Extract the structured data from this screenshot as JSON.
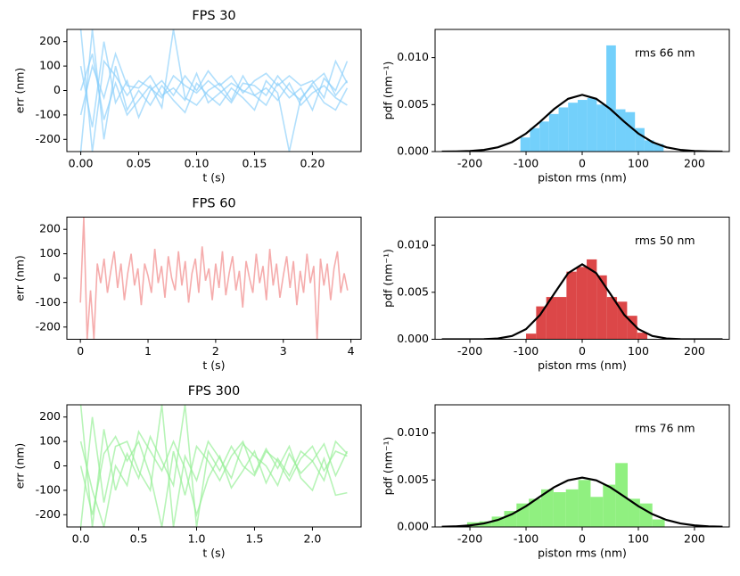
{
  "chart_data": [
    {
      "type": "line",
      "title": "FPS 30",
      "xlabel": "t (s)",
      "ylabel": "err (nm)",
      "xlim": [
        -0.012,
        0.242
      ],
      "xticks": [
        {
          "value": 0,
          "label": "0.00"
        },
        0.05,
        {
          "value": 0.1,
          "label": "0.10"
        },
        0.15,
        {
          "value": 0.2,
          "label": "0.20"
        }
      ],
      "ylim": [
        -250,
        250
      ],
      "yticks": [
        -200,
        -100,
        0,
        100,
        200
      ],
      "x": [
        0,
        0.01,
        0.02,
        0.03,
        0.04,
        0.05,
        0.06,
        0.07,
        0.08,
        0.09,
        0.1,
        0.11,
        0.12,
        0.13,
        0.14,
        0.15,
        0.16,
        0.17,
        0.18,
        0.19,
        0.2,
        0.21,
        0.22,
        0.23
      ],
      "series": [
        {
          "color": "#87cefa",
          "values": [
            250,
            -250,
            120,
            60,
            -20,
            40,
            10,
            -30,
            60,
            20,
            -10,
            40,
            0,
            -50,
            30,
            20,
            -20,
            60,
            0,
            -40,
            30,
            70,
            -20,
            40
          ]
        },
        {
          "color": "#87cefa",
          "values": [
            -250,
            250,
            -200,
            100,
            -80,
            0,
            -60,
            20,
            -40,
            -90,
            30,
            -20,
            -60,
            10,
            -30,
            -80,
            40,
            -10,
            -250,
            -30,
            20,
            -50,
            -80,
            10
          ]
        },
        {
          "color": "#87cefa",
          "values": [
            0,
            150,
            -120,
            30,
            -100,
            -40,
            20,
            -70,
            250,
            -30,
            -60,
            0,
            30,
            -40,
            60,
            -20,
            10,
            -40,
            30,
            -60,
            -10,
            20,
            -30,
            -60
          ]
        },
        {
          "color": "#87cefa",
          "values": [
            100,
            -150,
            200,
            -50,
            40,
            -110,
            0,
            40,
            -20,
            60,
            0,
            80,
            20,
            60,
            -10,
            40,
            70,
            20,
            60,
            20,
            40,
            -30,
            120,
            30
          ]
        },
        {
          "color": "#87cefa",
          "values": [
            -100,
            100,
            -30,
            150,
            20,
            10,
            60,
            -20,
            10,
            -40,
            70,
            -50,
            -10,
            30,
            0,
            -20,
            -60,
            30,
            -30,
            10,
            -80,
            50,
            0,
            120
          ]
        }
      ]
    },
    {
      "type": "histogram",
      "xlabel": "piston rms (nm)",
      "ylabel": "pdf (nm⁻¹)",
      "annotation": "rms 66 nm",
      "xlim": [
        -262,
        262
      ],
      "xticks": [
        -200,
        -100,
        0,
        100,
        200
      ],
      "ylim": [
        0,
        0.013
      ],
      "yticks": [
        {
          "value": 0,
          "label": "0.000"
        },
        0.005,
        {
          "value": 0.01,
          "label": "0.010"
        }
      ],
      "color": "#5ac8fa",
      "bins": [
        -110,
        -93,
        -76,
        -59,
        -42,
        -25,
        -8,
        9,
        26,
        43,
        60,
        77,
        94,
        111,
        128,
        145
      ],
      "values": [
        0.0015,
        0.0025,
        0.0032,
        0.004,
        0.0047,
        0.0052,
        0.0055,
        0.0057,
        0.005,
        0.0113,
        0.0045,
        0.0042,
        0.0025,
        0.0012,
        0.0008
      ],
      "fit": {
        "color": "#000000",
        "x": [
          -250,
          -225,
          -200,
          -175,
          -150,
          -125,
          -100,
          -75,
          -50,
          -25,
          0,
          25,
          50,
          75,
          100,
          125,
          150,
          175,
          200,
          225,
          250
        ],
        "values": [
          4.6e-06,
          1.81e-05,
          6.12e-05,
          0.00018,
          0.000457,
          0.00101,
          0.00192,
          0.00317,
          0.00453,
          0.00562,
          0.00604,
          0.00562,
          0.00453,
          0.00317,
          0.00192,
          0.00101,
          0.000457,
          0.00018,
          6.12e-05,
          1.81e-05,
          4.6e-06
        ]
      }
    },
    {
      "type": "line",
      "title": "FPS 60",
      "xlabel": "t (s)",
      "ylabel": "err (nm)",
      "xlim": [
        -0.2,
        4.15
      ],
      "xticks": [
        0,
        1,
        2,
        3,
        4
      ],
      "ylim": [
        -250,
        250
      ],
      "yticks": [
        -200,
        -100,
        0,
        100,
        200
      ],
      "x": [
        0,
        0.05,
        0.1,
        0.15,
        0.2,
        0.25,
        0.3,
        0.35,
        0.4,
        0.45,
        0.5,
        0.55,
        0.6,
        0.65,
        0.7,
        0.75,
        0.8,
        0.85,
        0.9,
        0.95,
        1,
        1.05,
        1.1,
        1.15,
        1.2,
        1.25,
        1.3,
        1.35,
        1.4,
        1.45,
        1.5,
        1.55,
        1.6,
        1.65,
        1.7,
        1.75,
        1.8,
        1.85,
        1.9,
        1.95,
        2,
        2.05,
        2.1,
        2.15,
        2.2,
        2.25,
        2.3,
        2.35,
        2.4,
        2.45,
        2.5,
        2.55,
        2.6,
        2.65,
        2.7,
        2.75,
        2.8,
        2.85,
        2.9,
        2.95,
        3,
        3.05,
        3.1,
        3.15,
        3.2,
        3.25,
        3.3,
        3.35,
        3.4,
        3.45,
        3.5,
        3.55,
        3.6,
        3.65,
        3.7,
        3.75,
        3.8,
        3.85,
        3.9,
        3.95
      ],
      "series": [
        {
          "color": "#f08080",
          "values": [
            -100,
            250,
            -250,
            -50,
            -250,
            60,
            -20,
            80,
            -60,
            30,
            110,
            -40,
            60,
            -90,
            20,
            100,
            -30,
            40,
            -110,
            60,
            10,
            -60,
            120,
            -20,
            50,
            -80,
            90,
            0,
            -50,
            110,
            -30,
            70,
            -100,
            20,
            80,
            -60,
            130,
            -10,
            40,
            -90,
            60,
            -40,
            110,
            -70,
            20,
            90,
            -50,
            30,
            -120,
            70,
            0,
            -60,
            100,
            -20,
            50,
            -90,
            120,
            -30,
            60,
            -80,
            10,
            90,
            -40,
            70,
            -110,
            30,
            -60,
            100,
            -20,
            50,
            -250,
            80,
            -30,
            60,
            -90,
            40,
            110,
            -60,
            20,
            -50
          ]
        }
      ]
    },
    {
      "type": "histogram",
      "xlabel": "piston rms (nm)",
      "ylabel": "pdf (nm⁻¹)",
      "annotation": "rms 50 nm",
      "xlim": [
        -262,
        262
      ],
      "xticks": [
        -200,
        -100,
        0,
        100,
        200
      ],
      "ylim": [
        0,
        0.013
      ],
      "yticks": [
        {
          "value": 0,
          "label": "0.000"
        },
        0.005,
        {
          "value": 0.01,
          "label": "0.010"
        }
      ],
      "color": "#d62728",
      "bins": [
        -100,
        -82,
        -64,
        -46,
        -28,
        -10,
        8,
        26,
        44,
        62,
        80,
        98,
        116
      ],
      "values": [
        0.0006,
        0.0035,
        0.0045,
        0.0045,
        0.0072,
        0.0077,
        0.0085,
        0.0068,
        0.0045,
        0.004,
        0.0025,
        0.0007
      ],
      "fit": {
        "color": "#000000",
        "x": [
          -250,
          -225,
          -200,
          -175,
          -150,
          -125,
          -100,
          -75,
          -50,
          -25,
          0,
          25,
          50,
          75,
          100,
          125,
          150,
          175,
          200,
          225,
          250
        ],
        "values": [
          0,
          3e-07,
          2.7e-06,
          1.75e-05,
          8.86e-05,
          0.00035,
          0.00108,
          0.00259,
          0.00484,
          0.00704,
          0.00798,
          0.00704,
          0.00484,
          0.00259,
          0.00108,
          0.00035,
          8.86e-05,
          1.75e-05,
          2.7e-06,
          3e-07,
          0
        ]
      }
    },
    {
      "type": "line",
      "title": "FPS 300",
      "xlabel": "t (s)",
      "ylabel": "err (nm)",
      "xlim": [
        -0.12,
        2.42
      ],
      "xticks": [
        {
          "value": 0,
          "label": "0.0"
        },
        0.5,
        {
          "value": 1,
          "label": "1.0"
        },
        1.5,
        {
          "value": 2,
          "label": "2.0"
        }
      ],
      "ylim": [
        -250,
        250
      ],
      "yticks": [
        -200,
        -100,
        0,
        100,
        200
      ],
      "x": [
        0,
        0.1,
        0.2,
        0.3,
        0.4,
        0.5,
        0.6,
        0.7,
        0.8,
        0.9,
        1,
        1.1,
        1.2,
        1.3,
        1.4,
        1.5,
        1.6,
        1.7,
        1.8,
        1.9,
        2,
        2.1,
        2.2,
        2.3
      ],
      "series": [
        {
          "color": "#90ee90",
          "values": [
            250,
            -250,
            150,
            -100,
            50,
            -50,
            120,
            20,
            -80,
            250,
            -250,
            60,
            -20,
            80,
            0,
            -40,
            60,
            20,
            -60,
            30,
            80,
            -20,
            60,
            40
          ]
        },
        {
          "color": "#90ee90",
          "values": [
            -250,
            200,
            -150,
            80,
            100,
            -20,
            -100,
            250,
            -250,
            40,
            -60,
            100,
            30,
            -50,
            90,
            40,
            0,
            -80,
            50,
            -30,
            20,
            90,
            -40,
            60
          ]
        },
        {
          "color": "#90ee90",
          "values": [
            0,
            -200,
            50,
            120,
            20,
            100,
            -40,
            -250,
            60,
            -120,
            80,
            20,
            -60,
            40,
            100,
            -30,
            70,
            -10,
            80,
            -50,
            -100,
            30,
            -120,
            -110
          ]
        },
        {
          "color": "#90ee90",
          "values": [
            100,
            -100,
            -250,
            0,
            -80,
            140,
            60,
            -20,
            100,
            -10,
            -200,
            -50,
            40,
            -90,
            -20,
            60,
            -70,
            30,
            -40,
            60,
            20,
            -60,
            100,
            50
          ]
        }
      ]
    },
    {
      "type": "histogram",
      "xlabel": "piston rms (nm)",
      "ylabel": "pdf (nm⁻¹)",
      "annotation": "rms 76 nm",
      "xlim": [
        -262,
        262
      ],
      "xticks": [
        -200,
        -100,
        0,
        100,
        200
      ],
      "ylim": [
        0,
        0.013
      ],
      "yticks": [
        {
          "value": 0,
          "label": "0.000"
        },
        0.005,
        {
          "value": 0.01,
          "label": "0.010"
        }
      ],
      "color": "#7ced6a",
      "bins": [
        -205,
        -183,
        -161,
        -139,
        -117,
        -95,
        -73,
        -51,
        -29,
        -7,
        15,
        37,
        59,
        81,
        103,
        125,
        147
      ],
      "values": [
        0.0005,
        0.0006,
        0.0011,
        0.0017,
        0.0025,
        0.003,
        0.004,
        0.0037,
        0.004,
        0.005,
        0.0032,
        0.0045,
        0.0068,
        0.003,
        0.0025,
        0.0008
      ],
      "fit": {
        "color": "#000000",
        "x": [
          -250,
          -225,
          -200,
          -175,
          -150,
          -125,
          -100,
          -75,
          -50,
          -25,
          0,
          25,
          50,
          75,
          100,
          125,
          150,
          175,
          200,
          225,
          250
        ],
        "values": [
          2.35e-05,
          6.56e-05,
          0.000164,
          0.000371,
          0.000749,
          0.00136,
          0.00221,
          0.00323,
          0.00423,
          0.00497,
          0.00525,
          0.00497,
          0.00423,
          0.00323,
          0.00221,
          0.00136,
          0.000749,
          0.000371,
          0.000164,
          6.56e-05,
          2.35e-05
        ]
      }
    }
  ]
}
